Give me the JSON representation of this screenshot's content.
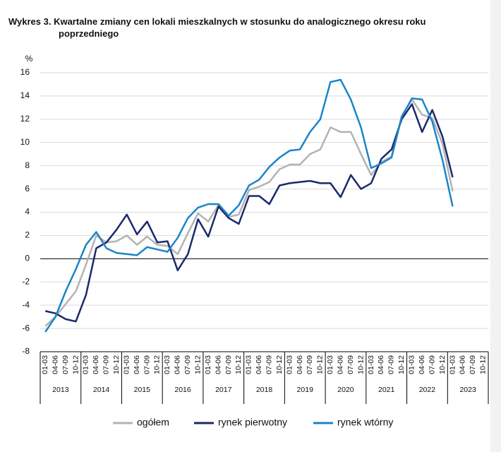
{
  "chart_data": {
    "type": "line",
    "title": "Wykres 3. Kwartalne zmiany cen lokali mieszkalnych w stosunku do analogicznego okresu roku poprzedniego",
    "y_unit": "%",
    "categories": [
      "01-03",
      "04-06",
      "07-09",
      "10-12",
      "01-03",
      "04-06",
      "07-09",
      "10-12",
      "01-03",
      "04-06",
      "07-09",
      "10-12",
      "01-03",
      "04-06",
      "07-09",
      "10-12",
      "01-03",
      "04-06",
      "07-09",
      "10-12",
      "01-03",
      "04-06",
      "07-09",
      "10-12",
      "01-03",
      "04-06",
      "07-09",
      "10-12",
      "01-03",
      "04-06",
      "07-09",
      "10-12",
      "01-03",
      "04-06",
      "07-09",
      "10-12",
      "01-03",
      "04-06",
      "07-09",
      "10-12",
      "01-03",
      "04-06",
      "07-09",
      "10-12"
    ],
    "years": [
      "2013",
      "2014",
      "2015",
      "2016",
      "2017",
      "2018",
      "2019",
      "2020",
      "2021",
      "2022",
      "2023"
    ],
    "series": [
      {
        "name": "ogółem",
        "color": "#b3b3b3",
        "values": [
          -5.8,
          -5.0,
          -3.9,
          -2.8,
          -0.5,
          2.0,
          1.4,
          1.5,
          2.0,
          1.2,
          1.9,
          1.2,
          1.1,
          0.4,
          2.2,
          3.9,
          3.2,
          4.6,
          3.6,
          3.8,
          5.9,
          6.2,
          6.6,
          7.7,
          8.1,
          8.1,
          9.0,
          9.4,
          11.3,
          10.9,
          10.9,
          9.0,
          7.2,
          8.3,
          8.8,
          12.3,
          13.7,
          12.4,
          12.1,
          9.9,
          5.8,
          null,
          null,
          null
        ]
      },
      {
        "name": "rynek pierwotny",
        "color": "#1b2a6b",
        "values": [
          -4.5,
          -4.7,
          -5.2,
          -5.4,
          -3.1,
          0.9,
          1.4,
          2.5,
          3.8,
          2.1,
          3.2,
          1.4,
          1.5,
          -1.0,
          0.4,
          3.4,
          1.9,
          4.5,
          3.5,
          3.0,
          5.4,
          5.4,
          4.7,
          6.3,
          6.5,
          6.6,
          6.7,
          6.5,
          6.5,
          5.3,
          7.2,
          6.0,
          6.5,
          8.6,
          9.4,
          12.0,
          13.3,
          10.9,
          12.8,
          10.5,
          7.0,
          null,
          null,
          null
        ]
      },
      {
        "name": "rynek wtórny",
        "color": "#1a85c8",
        "values": [
          -6.3,
          -5.0,
          -2.8,
          -0.9,
          1.2,
          2.3,
          0.9,
          0.5,
          0.4,
          0.3,
          1.0,
          0.8,
          0.6,
          1.8,
          3.5,
          4.4,
          4.7,
          4.7,
          3.7,
          4.6,
          6.3,
          6.8,
          7.9,
          8.7,
          9.3,
          9.4,
          10.9,
          12.0,
          15.2,
          15.4,
          13.7,
          11.3,
          7.8,
          8.2,
          8.7,
          12.2,
          13.8,
          13.7,
          11.8,
          8.5,
          4.5,
          null,
          null,
          null
        ]
      }
    ],
    "ylim": [
      -8,
      16
    ],
    "yticks": [
      -8,
      -6,
      -4,
      -2,
      0,
      2,
      4,
      6,
      8,
      10,
      12,
      14,
      16
    ],
    "grid": true
  }
}
